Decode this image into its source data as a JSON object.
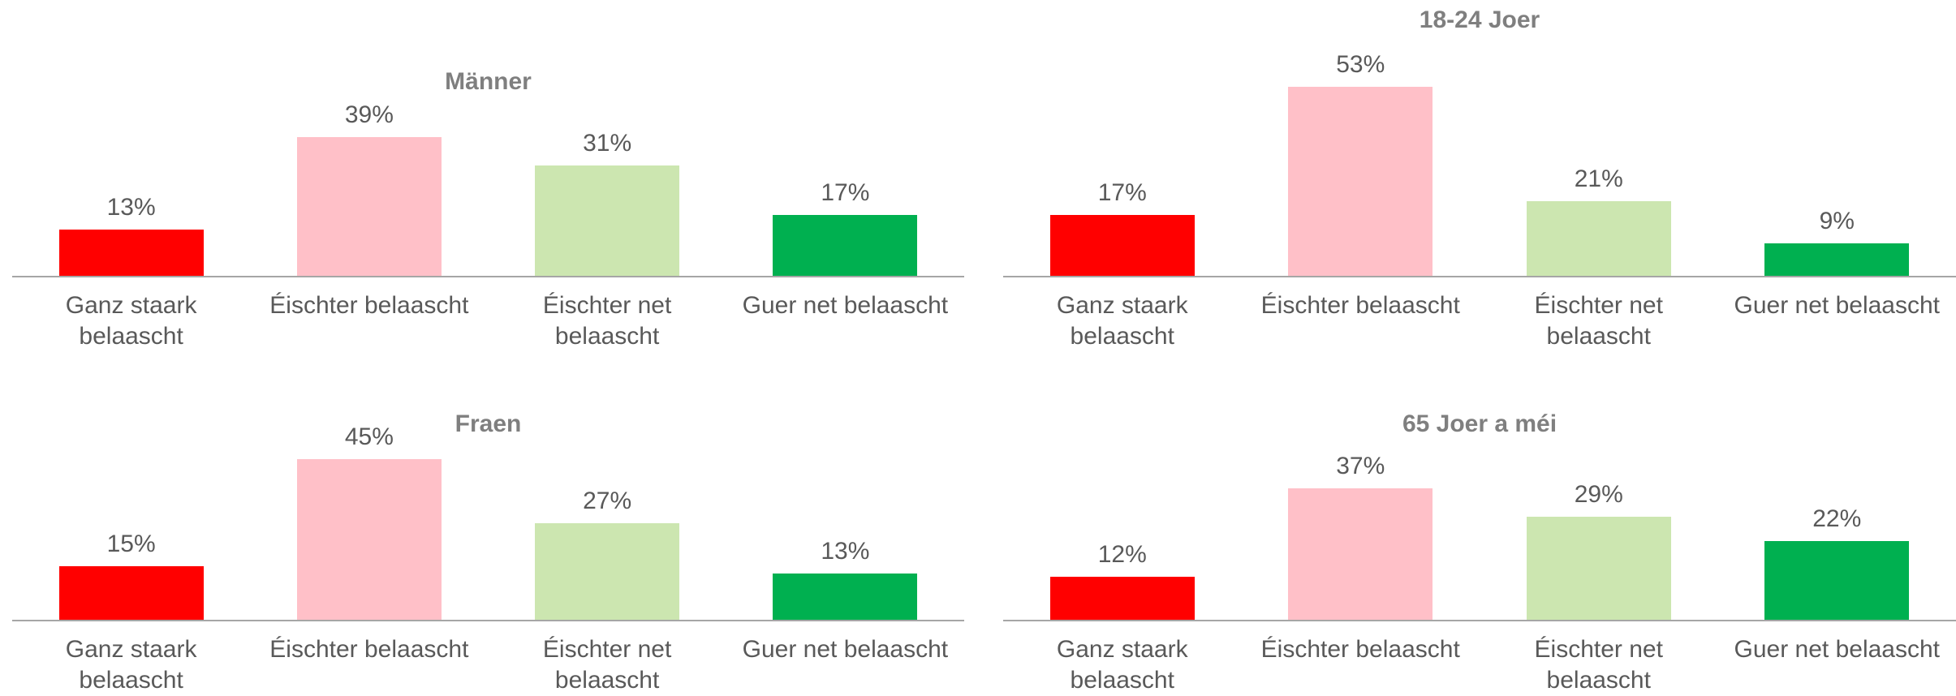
{
  "chart_data": [
    {
      "type": "bar",
      "title": "Männer",
      "categories": [
        "Ganz staark belaascht",
        "Éischter belaascht",
        "Éischter net belaascht",
        "Guer net belaascht"
      ],
      "values": [
        13,
        39,
        31,
        17
      ],
      "value_labels": [
        "13%",
        "39%",
        "31%",
        "17%"
      ],
      "colors": [
        "#ff0000",
        "#ffc0c8",
        "#cce6b0",
        "#00b050"
      ]
    },
    {
      "type": "bar",
      "title": "18-24 Joer",
      "categories": [
        "Ganz staark belaascht",
        "Éischter belaascht",
        "Éischter net belaascht",
        "Guer net belaascht"
      ],
      "values": [
        17,
        53,
        21,
        9
      ],
      "value_labels": [
        "17%",
        "53%",
        "21%",
        "9%"
      ],
      "colors": [
        "#ff0000",
        "#ffc0c8",
        "#cce6b0",
        "#00b050"
      ]
    },
    {
      "type": "bar",
      "title": "Fraen",
      "categories": [
        "Ganz staark belaascht",
        "Éischter belaascht",
        "Éischter net belaascht",
        "Guer net belaascht"
      ],
      "values": [
        15,
        45,
        27,
        13
      ],
      "value_labels": [
        "15%",
        "45%",
        "27%",
        "13%"
      ],
      "colors": [
        "#ff0000",
        "#ffc0c8",
        "#cce6b0",
        "#00b050"
      ]
    },
    {
      "type": "bar",
      "title": "65 Joer a méi",
      "categories": [
        "Ganz staark belaascht",
        "Éischter belaascht",
        "Éischter net belaascht",
        "Guer net belaascht"
      ],
      "values": [
        12,
        37,
        29,
        22
      ],
      "value_labels": [
        "12%",
        "37%",
        "29%",
        "22%"
      ],
      "colors": [
        "#ff0000",
        "#ffc0c8",
        "#cce6b0",
        "#00b050"
      ]
    }
  ]
}
